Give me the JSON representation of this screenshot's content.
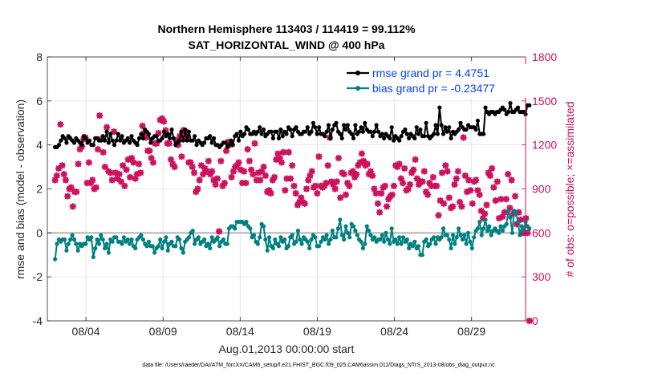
{
  "chart_data": {
    "type": "line",
    "title_line1": "Northern Hemisphere 113403 / 114419 = 99.112%",
    "title_line2": "SAT_HORIZONTAL_WIND @ 400 hPa",
    "ylabel_left": "rmse and bias (model - observation)",
    "ylabel_right": "# of obs: o=possible; ×=assimilated",
    "xlabel": "Aug.01,2013 00:00:00 start",
    "footnote": "data file: /Users/raeder/DAI/ATM_forcXX/CAM6_setup/f.e21.FHIST_BGC.f09_025.CAM6assim.011/Diags_NTrS_2013-08/obs_diag_output.nc",
    "ylim_left": [
      -4,
      8
    ],
    "ylim_right": [
      0,
      1800
    ],
    "xlim_days": [
      0.5,
      31.5
    ],
    "left_ticks": [
      "-4",
      "-2",
      "0",
      "2",
      "4",
      "6",
      "8"
    ],
    "right_ticks": [
      "0",
      "300",
      "600",
      "900",
      "1200",
      "1500",
      "1800"
    ],
    "x_ticks": [
      {
        "day": 3,
        "label": "08/04"
      },
      {
        "day": 8,
        "label": "08/09"
      },
      {
        "day": 13,
        "label": "08/14"
      },
      {
        "day": 18,
        "label": "08/19"
      },
      {
        "day": 23,
        "label": "08/24"
      },
      {
        "day": 28,
        "label": "08/29"
      }
    ],
    "series": [
      {
        "name": "rmse grand pr = 4.4751",
        "color": "#000000",
        "values": [
          3.9,
          3.9,
          4.0,
          4.2,
          4.4,
          4.3,
          4.1,
          4.4,
          4.3,
          4.2,
          4.1,
          4.3,
          4.2,
          4.1,
          4.0,
          4.4,
          4.3,
          4.1,
          4.2,
          4.0,
          4.0,
          4.3,
          4.3,
          4.2,
          4.2,
          4.4,
          4.2,
          4.6,
          4.1,
          4.5,
          4.2,
          4.0,
          4.2,
          4.5,
          4.2,
          4.4,
          4.1,
          4.2,
          4.3,
          4.1,
          4.4,
          4.2,
          4.1,
          4.0,
          4.3,
          4.5,
          4.3,
          4.7,
          4.6,
          4.5,
          4.1,
          4.3,
          4.4,
          4.4,
          4.2,
          4.2,
          4.3,
          4.6,
          4.4,
          4.5,
          4.3,
          4.7,
          4.3,
          4.0,
          4.1,
          4.2,
          4.6,
          4.2,
          4.7,
          4.2,
          4.6,
          4.2,
          4.2,
          4.4,
          4.0,
          4.2,
          4.1,
          4.0,
          4.1,
          4.3,
          4.3,
          4.4,
          4.1,
          4.3,
          4.0,
          4.0,
          3.9,
          4.0,
          4.1,
          4.1,
          3.9,
          4.0,
          4.2,
          4.0,
          4.4,
          4.5,
          4.2,
          4.6,
          4.4,
          4.5,
          4.8,
          4.7,
          4.5,
          4.5,
          4.6,
          4.5,
          4.6,
          4.8,
          4.5,
          4.7,
          4.4,
          4.5,
          4.6,
          4.6,
          4.3,
          4.6,
          4.6,
          4.3,
          4.7,
          4.4,
          4.6,
          4.5,
          4.8,
          4.7,
          4.4,
          4.7,
          4.8,
          4.6,
          4.5,
          4.5,
          4.6,
          4.6,
          4.8,
          4.5,
          4.6,
          5.0,
          4.8,
          4.5,
          4.8,
          4.5,
          4.5,
          4.4,
          4.6,
          4.9,
          4.3,
          4.7,
          4.9,
          5.0,
          4.6,
          4.5,
          4.3,
          4.9,
          4.7,
          4.9,
          4.6,
          4.5,
          4.3,
          4.9,
          4.5,
          4.6,
          4.8,
          4.6,
          5.0,
          4.7,
          4.6,
          4.6,
          4.4,
          4.6,
          4.9,
          4.6,
          4.4,
          4.5,
          4.3,
          4.5,
          4.4,
          4.3,
          4.8,
          4.2,
          4.4,
          4.3,
          4.2,
          4.4,
          4.6,
          4.7,
          4.5,
          4.3,
          4.5,
          4.4,
          4.3,
          4.8,
          4.5,
          4.7,
          4.4,
          4.4,
          5.0,
          4.4,
          4.3,
          4.4,
          4.5,
          4.9,
          4.5,
          5.7,
          4.9,
          4.5,
          4.8,
          4.6,
          4.8,
          4.3,
          4.6,
          4.5,
          4.6,
          4.7,
          5.0,
          4.8,
          4.7,
          4.7,
          4.9,
          4.8,
          4.8,
          4.8,
          4.7,
          5.1,
          4.5,
          4.5,
          4.5,
          5.7,
          5.5,
          5.4,
          5.5,
          5.5,
          5.4,
          5.5,
          5.5,
          5.6,
          5.7,
          5.6,
          5.4,
          5.5,
          5.9,
          5.5,
          5.5,
          5.6,
          5.7,
          5.5,
          5.5,
          5.5,
          5.4,
          5.8,
          5.8
        ]
      },
      {
        "name": "bias grand pr = -0.23477",
        "color": "#008080",
        "values": [
          -1.2,
          -0.5,
          -0.3,
          -0.4,
          -0.3,
          -0.3,
          -0.8,
          -0.5,
          -0.3,
          -0.1,
          -0.3,
          -0.5,
          -0.8,
          -0.5,
          -0.6,
          -0.5,
          -0.5,
          -0.2,
          -0.3,
          -0.2,
          -1.1,
          -0.7,
          -0.3,
          -0.5,
          -0.1,
          -0.3,
          -0.7,
          -0.5,
          -0.9,
          -0.3,
          -0.4,
          -0.2,
          -0.2,
          -0.4,
          -0.4,
          -0.5,
          -0.2,
          -0.4,
          -0.3,
          -0.5,
          -0.3,
          -0.6,
          -0.7,
          -0.3,
          -0.2,
          -0.1,
          -0.3,
          -0.5,
          -0.6,
          -0.4,
          -0.6,
          -0.6,
          -0.9,
          -0.7,
          -0.6,
          -0.3,
          -0.7,
          -0.4,
          -0.2,
          -0.8,
          -0.5,
          -0.4,
          -0.6,
          -0.6,
          -0.2,
          -0.3,
          -0.7,
          -0.9,
          -0.4,
          -0.3,
          -0.2,
          0.0,
          0.1,
          -0.5,
          -0.3,
          -0.2,
          -0.5,
          -0.4,
          -0.3,
          -0.6,
          -0.5,
          -0.7,
          -0.2,
          -0.4,
          -0.3,
          -0.2,
          -0.6,
          -0.4,
          -0.3,
          -0.5,
          -0.5,
          0.2,
          0.3,
          0.3,
          0.2,
          0.5,
          0.5,
          0.5,
          0.5,
          0.4,
          0.5,
          0.3,
          0.2,
          -0.2,
          -0.1,
          -0.4,
          -0.5,
          -0.2,
          0.4,
          0.3,
          -0.3,
          -0.8,
          -0.2,
          -0.6,
          -0.7,
          -0.3,
          -0.5,
          -0.6,
          -0.2,
          -0.4,
          -0.3,
          -0.7,
          -0.6,
          -0.2,
          -0.1,
          -0.5,
          -0.4,
          0.1,
          -0.3,
          -0.5,
          -0.2,
          -0.3,
          -0.4,
          -0.7,
          -0.3,
          -0.1,
          -0.2,
          -0.6,
          -0.6,
          -0.4,
          -0.2,
          -0.3,
          -0.1,
          -0.5,
          -0.3,
          0.1,
          -0.2,
          -0.2,
          0.2,
          0.6,
          -0.1,
          -0.3,
          0.3,
          0.0,
          -0.2,
          0.4,
          0.3,
          0.1,
          -0.1,
          -0.3,
          -0.4,
          -0.7,
          -0.5,
          0.3,
          0.1,
          -0.1,
          -0.3,
          -0.2,
          -0.4,
          -0.3,
          -0.3,
          -0.1,
          -0.4,
          0.0,
          -0.3,
          -0.5,
          0.2,
          -0.4,
          -0.3,
          -0.5,
          -0.2,
          -0.5,
          -0.2,
          -0.4,
          -0.3,
          -0.7,
          -0.5,
          -0.6,
          -0.4,
          -0.7,
          -0.6,
          -1.0,
          -1.0,
          -0.4,
          -0.3,
          -0.6,
          -0.5,
          -0.3,
          -0.2,
          -0.5,
          -0.2,
          -0.3,
          -0.2,
          0.2,
          -0.1,
          -0.1,
          -0.3,
          -0.7,
          -0.1,
          -0.5,
          -0.2,
          0.2,
          -0.1,
          -0.3,
          -0.1,
          -0.5,
          0.0,
          -0.4,
          -0.7,
          -0.2,
          0.1,
          0.2,
          0.5,
          -0.1,
          0.2,
          0.6,
          0.1,
          0.3,
          -0.1,
          0.1,
          0.2,
          0.1,
          0.0,
          0.3,
          0.1,
          0.3,
          0.4,
          1.0,
          0.7,
          0.0,
          1.0,
          0.9,
          0.5,
          -0.1,
          0.3,
          0.1,
          0.5,
          0.3,
          0.2
        ]
      }
    ],
    "obs_possible": [
      960,
      990,
      1040,
      1340,
      1060,
      1000,
      960,
      850,
      900,
      910,
      780,
      880,
      880,
      1070,
      1170,
      1190,
      1240,
      1250,
      940,
      1080,
      940,
      960,
      900,
      910,
      1170,
      1400,
      1240,
      1150,
      1050,
      1320,
      1020,
      1010,
      960,
      1290,
      1010,
      970,
      1000,
      950,
      1060,
      920,
      1030,
      1100,
      980,
      1110,
      1080,
      970,
      1000,
      1070,
      1010,
      1330,
      1280,
      1250,
      1160,
      1160,
      1110,
      1080,
      1210,
      1210,
      1280,
      1370,
      1380,
      1360,
      1300,
      1210,
      1210,
      1100,
      1070,
      1050,
      1230,
      1200,
      1260,
      1120,
      1300,
      1290,
      1250,
      1080,
      1080,
      1050,
      1010,
      880,
      900,
      960,
      1060,
      1000,
      1040,
      1020,
      1090,
      1000,
      1020,
      960,
      930,
      970,
      610,
      1090,
      920,
      940,
      1160,
      1220,
      1200,
      980,
      1020,
      1050,
      1060,
      1080,
      1030,
      940,
      1020,
      940,
      1170,
      1090,
      1030,
      1000,
      1210,
      960,
      1010,
      960,
      1020,
      1050,
      990,
      880,
      890,
      870,
      960,
      980,
      1100,
      1140,
      1110,
      1080,
      1150,
      890,
      970,
      1150,
      970,
      1060,
      920,
      870,
      790,
      810,
      840,
      810,
      800,
      900,
      960,
      990,
      1020,
      910,
      920,
      870,
      1120,
      920,
      910,
      920,
      940,
      1060,
      1250,
      950,
      930,
      900,
      950,
      1110,
      840,
      1010,
      1000,
      860,
      940,
      920,
      1010,
      1020,
      980,
      1000,
      1060,
      1080,
      1140,
      1090,
      1060,
      1070,
      1000,
      1020,
      990,
      900,
      870,
      800,
      740,
      870,
      910,
      920,
      780,
      830,
      850,
      860,
      920,
      1060,
      1050,
      1070,
      970,
      940,
      1040,
      890,
      900,
      930,
      1010,
      1030,
      1100,
      970,
      930,
      950,
      950,
      1020,
      880,
      860,
      940,
      920,
      980,
      920,
      920,
      720,
      820,
      1010,
      800,
      1060,
      1020,
      840,
      770,
      780,
      930,
      970,
      1020,
      810,
      780,
      1250,
      990,
      880,
      960,
      890,
      800,
      950,
      960,
      890,
      860,
      750,
      700,
      730,
      790,
      1010,
      990,
      1040,
      910,
      820,
      950,
      700,
      830,
      710,
      740,
      830,
      1000,
      770,
      960,
      730,
      850,
      660,
      740,
      690,
      600,
      600,
      700,
      600,
      0
    ]
  },
  "legend": {
    "rmse_label": "rmse grand pr = 4.4751",
    "bias_label": "bias grand pr = -0.23477"
  },
  "colors": {
    "rmse": "#000000",
    "bias": "#008080",
    "obs": "#cc0e5c",
    "legend_text": "#0041ff",
    "grid": "#e6e6e6",
    "zero_line": "#b3b3b3"
  }
}
